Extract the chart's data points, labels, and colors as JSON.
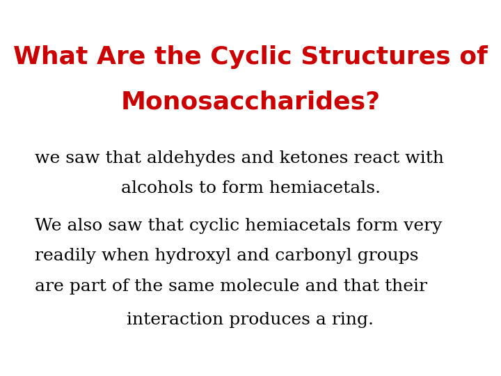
{
  "background_color": "#ffffff",
  "title_line1": "What Are the Cyclic Structures of",
  "title_line2": "Monosaccharides?",
  "title_color": "#cc0000",
  "title_fontsize": 26,
  "title_font": "Arial Rounded MT Bold",
  "body_lines": [
    "we saw that aldehydes and ketones react with",
    "alcohols to form hemiacetals.",
    "We also saw that cyclic hemiacetals form very",
    "readily when hydroxyl and carbonyl groups",
    "are part of the same molecule and that their",
    "interaction produces a ring."
  ],
  "body_color": "#000000",
  "body_fontsize": 18,
  "body_font": "DejaVu Serif",
  "fig_width": 7.2,
  "fig_height": 5.4,
  "dpi": 100
}
